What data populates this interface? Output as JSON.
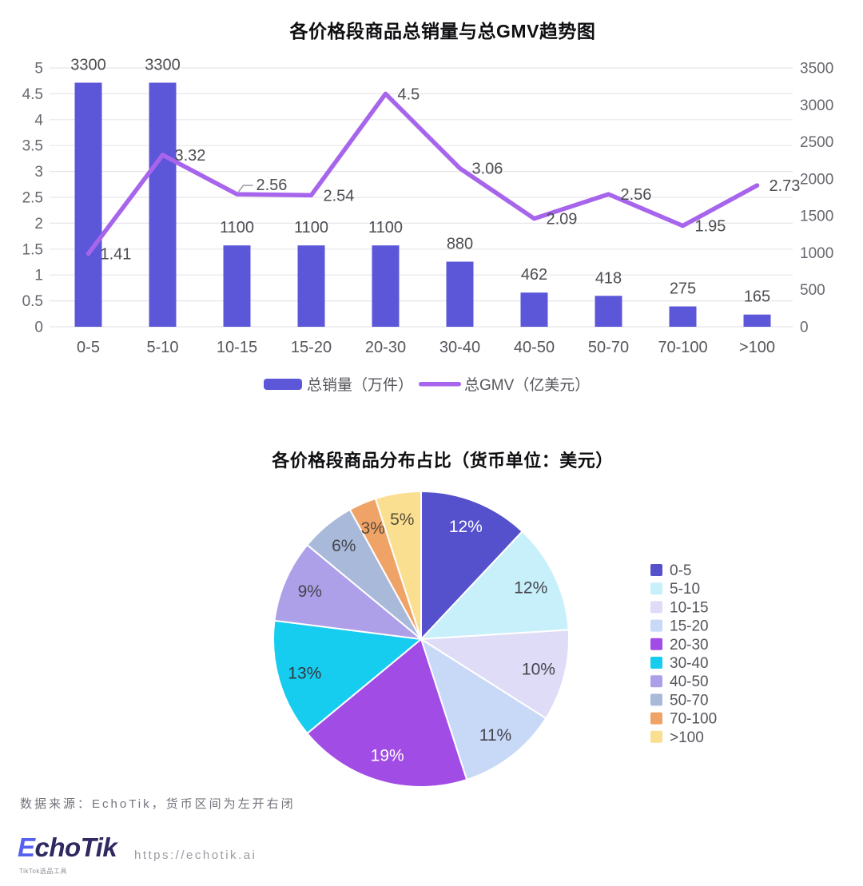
{
  "page": {
    "background": "#ffffff"
  },
  "chart_data": [
    {
      "type": "bar",
      "subtype": "combo_bar_line",
      "title": "各价格段商品总销量与总GMV趋势图",
      "categories": [
        "0-5",
        "5-10",
        "10-15",
        "15-20",
        "20-30",
        "30-40",
        "40-50",
        "50-70",
        "70-100",
        ">100"
      ],
      "series": [
        {
          "name": "总销量（万件）",
          "type": "bar",
          "yaxis": "right",
          "color": "#5B57D8",
          "values": [
            3300,
            3300,
            1100,
            1100,
            1100,
            880,
            462,
            418,
            275,
            165
          ]
        },
        {
          "name": "总GMV（亿美元）",
          "type": "line",
          "yaxis": "left",
          "color": "#A765EC",
          "values": [
            1.41,
            3.32,
            2.56,
            2.54,
            4.5,
            3.06,
            2.09,
            2.56,
            1.95,
            2.73
          ]
        }
      ],
      "left_axis": {
        "min": 0,
        "max": 5,
        "tick_step": 0.5,
        "ticks": [
          "0",
          "0.5",
          "1",
          "1.5",
          "2",
          "2.5",
          "3",
          "3.5",
          "4",
          "4.5",
          "5"
        ]
      },
      "right_axis": {
        "min": 0,
        "max": 3500,
        "tick_step": 500,
        "ticks": [
          "0",
          "500",
          "1000",
          "1500",
          "2000",
          "2500",
          "3000",
          "3500"
        ]
      },
      "grid": true,
      "legend_position": "bottom",
      "label_color": "#4d4d52",
      "axis_label_color": "#66666e",
      "grid_color": "#e6e6ec"
    },
    {
      "type": "pie",
      "title": "各价格段商品分布占比（货币单位：美元）",
      "labels": [
        "0-5",
        "5-10",
        "10-15",
        "15-20",
        "20-30",
        "30-40",
        "40-50",
        "50-70",
        "70-100",
        ">100"
      ],
      "values": [
        12,
        12,
        10,
        11,
        19,
        13,
        9,
        6,
        3,
        5
      ],
      "unit": "%",
      "slice_labels": [
        "12%",
        "12%",
        "10%",
        "11%",
        "19%",
        "13%",
        "9%",
        "6%",
        "3%",
        "5%"
      ],
      "colors": [
        "#5550CB",
        "#C8F0FA",
        "#DEDCF7",
        "#C8D9F8",
        "#A14CE4",
        "#16CDF0",
        "#ADA0E9",
        "#A8B9DA",
        "#EFA367",
        "#FBDF90"
      ],
      "label_text_colors": [
        "#ffffff",
        "#45454d",
        "#45454d",
        "#45454d",
        "#ffffff",
        "#35353d",
        "#45454d",
        "#45454d",
        "#5a4a3a",
        "#55503a"
      ],
      "legend_position": "right",
      "legend_text_color": "#55555c"
    }
  ],
  "footer": {
    "source_note": "数据来源：EchoTik，货币区间为左开右闭",
    "logo_e": "E",
    "logo_rest": "choTik",
    "logo_subtitle": "TikTok选品工具",
    "url": "https://echotik.ai",
    "brand_color_primary": "#5661F0",
    "brand_color_dark": "#2E2960"
  }
}
